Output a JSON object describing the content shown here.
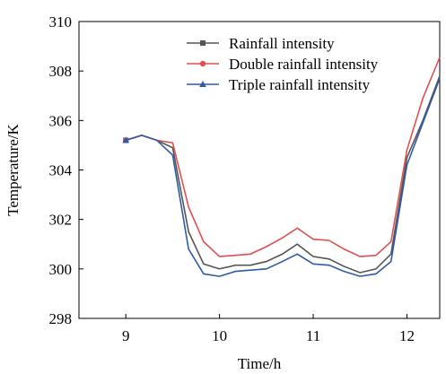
{
  "chart_data": {
    "type": "line",
    "xlabel": "Time/h",
    "ylabel": "Temperature/K",
    "xlim": [
      8.5,
      12.35
    ],
    "ylim": [
      298,
      310
    ],
    "xticks": [
      9,
      10,
      11,
      12
    ],
    "yticks": [
      298,
      300,
      302,
      304,
      306,
      308,
      310
    ],
    "legend_position": "top-right",
    "grid": false,
    "x": [
      9.0,
      9.17,
      9.33,
      9.5,
      9.67,
      9.83,
      10.0,
      10.17,
      10.33,
      10.5,
      10.67,
      10.83,
      11.0,
      11.17,
      11.33,
      11.5,
      11.67,
      11.83,
      12.0,
      12.17,
      12.35
    ],
    "series": [
      {
        "name": "Rainfall intensity",
        "color": "#555555",
        "marker": "square",
        "values": [
          305.2,
          305.4,
          305.2,
          304.9,
          301.5,
          300.2,
          300.0,
          300.15,
          300.15,
          300.3,
          300.6,
          301.0,
          300.5,
          300.4,
          300.1,
          299.85,
          300.0,
          300.6,
          304.5,
          306.0,
          307.8
        ]
      },
      {
        "name": "Double rainfall intensity",
        "color": "#e05050",
        "marker": "circle",
        "values": [
          305.2,
          305.4,
          305.2,
          305.1,
          302.5,
          301.1,
          300.5,
          300.55,
          300.6,
          300.9,
          301.25,
          301.65,
          301.2,
          301.15,
          300.8,
          300.5,
          300.55,
          301.1,
          304.8,
          306.9,
          308.55
        ]
      },
      {
        "name": "Triple rainfall intensity",
        "color": "#2f5aa8",
        "marker": "triangle",
        "values": [
          305.2,
          305.4,
          305.2,
          304.6,
          300.8,
          299.8,
          299.7,
          299.9,
          299.95,
          300.0,
          300.3,
          300.6,
          300.2,
          300.15,
          299.9,
          299.7,
          299.8,
          300.3,
          304.2,
          305.9,
          307.7
        ]
      }
    ]
  }
}
